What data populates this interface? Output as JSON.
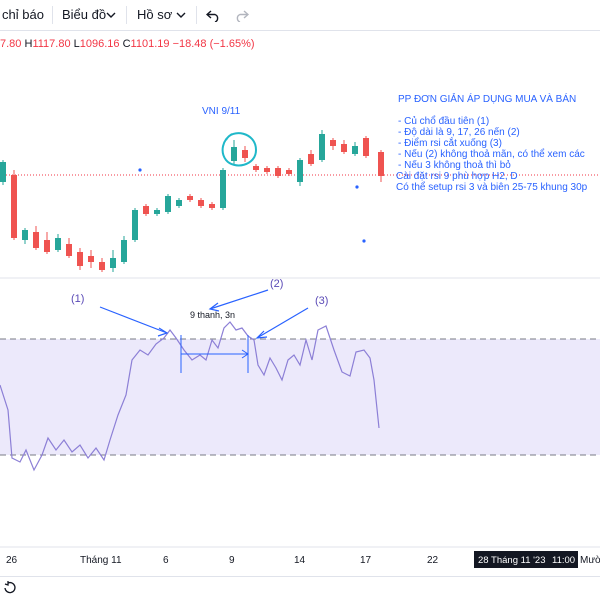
{
  "toolbar": {
    "indicators_label": "chỉ báo",
    "chart_type_label": "Biểu đồ",
    "profile_label": "Hồ sơ",
    "undo_icon": "undo-icon",
    "redo_icon": "redo-icon"
  },
  "ohlc": {
    "open_partial": "7.80",
    "high_key": "H",
    "high": "1117.80",
    "low_key": "L",
    "low": "1096.16",
    "close_key": "C",
    "close": "1101.19",
    "change": "−18.48 (−1.65%)"
  },
  "annotations": {
    "vni_label": "VNI 9/11",
    "notes_title": "PP ĐƠN GIẢN ÁP DỤNG MUA VÀ BÁN",
    "notes_lines": [
      "- Củ chổ đầu tiên (1)",
      "- Độ dài là 9, 17, 26 nến (2)",
      "- Điểm rsi cắt xuống (3)",
      "- Nếu (2) không thoả mãn, có thể xem các",
      "- Nếu 3 không thoả thì bỏ",
      "Cài đặt rsi 9 phù hợp H2, D",
      "Có thể setup rsi 3 và biên 25-75 khung 30p"
    ],
    "marker_1": "(1)",
    "marker_2": "(2)",
    "marker_3": "(3)",
    "measure_label": "9 thanh, 3n"
  },
  "time_axis": {
    "ticks": [
      "26",
      "Tháng 11",
      "6",
      "9",
      "14",
      "17",
      "22"
    ],
    "crosshair_label": "28 Tháng 11 '23",
    "crosshair_time": "11:00",
    "right_partial": "Mườ"
  },
  "colors": {
    "up": "#26a69a",
    "down": "#ef5350",
    "rsi_line": "#8c7fd6",
    "rsi_band": "#ece9fb",
    "annotation": "#2962ff",
    "circle": "#1fb8c9"
  }
}
